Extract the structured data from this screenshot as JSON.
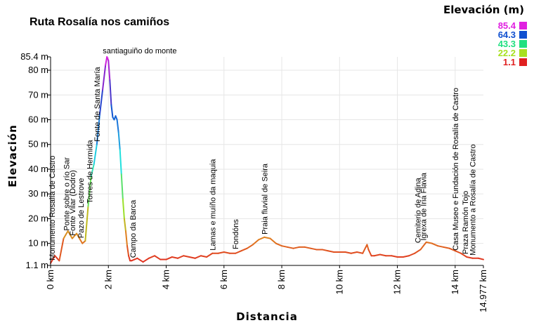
{
  "chart_data": {
    "type": "line",
    "title": "Ruta Rosalía nos camiños",
    "xlabel": "Distancia",
    "ylabel": "Elevación",
    "xlim": [
      0,
      14.977
    ],
    "ylim": [
      1.1,
      85.4
    ],
    "x_ticks": [
      "0 km",
      "2 km",
      "4 km",
      "6 km",
      "8 km",
      "10 km",
      "12 km",
      "14 km",
      "14.977 km"
    ],
    "x_tick_values": [
      0,
      2,
      4,
      6,
      8,
      10,
      12,
      14,
      14.977
    ],
    "y_ticks": [
      "1.1 m",
      "10 m",
      "20 m",
      "30 m",
      "40 m",
      "50 m",
      "60 m",
      "70 m",
      "80 m",
      "85.4 m"
    ],
    "y_tick_values": [
      1.1,
      10,
      20,
      30,
      40,
      50,
      60,
      70,
      80,
      85.4
    ],
    "grid": true,
    "legend": {
      "title": "Elevación (m)",
      "placement": "top-right",
      "entries": [
        {
          "label": "85.4",
          "color": "#e020e0"
        },
        {
          "label": "64.3",
          "color": "#1050d0"
        },
        {
          "label": "43.3",
          "color": "#20e080"
        },
        {
          "label": "22.2",
          "color": "#a8e020"
        },
        {
          "label": "1.1",
          "color": "#e02020"
        }
      ]
    },
    "series": [
      {
        "x": [
          0,
          0.15,
          0.3,
          0.45,
          0.6,
          0.75,
          0.9,
          1.0,
          1.1,
          1.2,
          1.3,
          1.4,
          1.5,
          1.6,
          1.7,
          1.8,
          1.9,
          1.95,
          2.0,
          2.05,
          2.1,
          2.15,
          2.2,
          2.25,
          2.3,
          2.35,
          2.4,
          2.45,
          2.5,
          2.55,
          2.6,
          2.65,
          2.7,
          2.75,
          2.8,
          2.9,
          3.0,
          3.2,
          3.4,
          3.6,
          3.8,
          4.0,
          4.2,
          4.4,
          4.6,
          4.8,
          5.0,
          5.2,
          5.4,
          5.6,
          5.8,
          6.0,
          6.2,
          6.4,
          6.6,
          6.8,
          7.0,
          7.2,
          7.4,
          7.6,
          7.8,
          8.0,
          8.2,
          8.4,
          8.6,
          8.8,
          9.0,
          9.2,
          9.4,
          9.6,
          9.8,
          10.0,
          10.2,
          10.4,
          10.6,
          10.8,
          10.95,
          11.0,
          11.1,
          11.2,
          11.4,
          11.6,
          11.8,
          12.0,
          12.2,
          12.4,
          12.6,
          12.8,
          13.0,
          13.2,
          13.4,
          13.6,
          13.8,
          14.0,
          14.2,
          14.4,
          14.6,
          14.8,
          14.977
        ],
        "y": [
          2,
          5,
          3,
          12,
          15,
          12,
          14,
          12,
          10,
          11,
          25,
          37,
          42,
          50,
          62,
          72,
          82,
          85.4,
          84,
          76,
          66,
          61,
          60,
          61.5,
          60,
          55,
          48,
          38,
          28,
          20,
          15,
          9,
          5,
          3,
          3,
          3.5,
          4,
          2.5,
          4,
          5,
          3.5,
          3.5,
          4.5,
          4,
          5,
          4.5,
          4,
          5,
          4.5,
          6,
          6,
          6.5,
          6,
          6,
          7,
          8,
          9.5,
          11.5,
          12.5,
          12,
          10,
          9,
          8.5,
          8,
          8.5,
          8.5,
          8,
          7.5,
          7.5,
          7,
          6.5,
          6.5,
          6.5,
          6,
          6.5,
          6,
          9.5,
          7.5,
          5,
          5,
          5.5,
          5,
          5,
          4.5,
          4.5,
          5,
          6,
          7.5,
          10.5,
          10,
          9,
          8.5,
          8,
          7,
          6,
          4.5,
          4,
          4,
          3.5
        ]
      }
    ],
    "annotations": [
      {
        "text": "santiaguiño do monte",
        "x": 2.0,
        "y": 85.4,
        "orientation": "horizontal"
      },
      {
        "text": "Monumento Rosalía de Castro",
        "x": 0.05,
        "y": 2,
        "orientation": "vertical"
      },
      {
        "text": "Ponte sobre o río Sar",
        "x": 0.55,
        "y": 14,
        "orientation": "vertical"
      },
      {
        "text": "Fonte Vilar (Dodro)",
        "x": 0.75,
        "y": 12,
        "orientation": "vertical"
      },
      {
        "text": "Pazo de Lestrove",
        "x": 1.05,
        "y": 11,
        "orientation": "vertical"
      },
      {
        "text": "Torres de Hermida",
        "x": 1.35,
        "y": 25,
        "orientation": "vertical"
      },
      {
        "text": "Fonte de Santa María",
        "x": 1.6,
        "y": 50,
        "orientation": "vertical"
      },
      {
        "text": "Campo da Barca",
        "x": 2.85,
        "y": 3,
        "orientation": "vertical"
      },
      {
        "text": "Lamas e muíño da maquia",
        "x": 5.6,
        "y": 6,
        "orientation": "vertical"
      },
      {
        "text": "Fondóns",
        "x": 6.4,
        "y": 6.5,
        "orientation": "vertical"
      },
      {
        "text": "Praia fluvial de Seira",
        "x": 7.4,
        "y": 12.5,
        "orientation": "vertical"
      },
      {
        "text": "Cemiterio de Adina",
        "x": 12.7,
        "y": 9,
        "orientation": "vertical"
      },
      {
        "text": "Igrexa de Iria Flavia",
        "x": 12.9,
        "y": 10,
        "orientation": "vertical"
      },
      {
        "text": "Casa Museo e Fundación de Rosalía de Castro",
        "x": 14.0,
        "y": 6,
        "orientation": "vertical"
      },
      {
        "text": "Praza Ramón Tojo",
        "x": 14.35,
        "y": 4.5,
        "orientation": "vertical"
      },
      {
        "text": "Monumento a Rosalía de Castro",
        "x": 14.6,
        "y": 4,
        "orientation": "vertical"
      }
    ]
  }
}
